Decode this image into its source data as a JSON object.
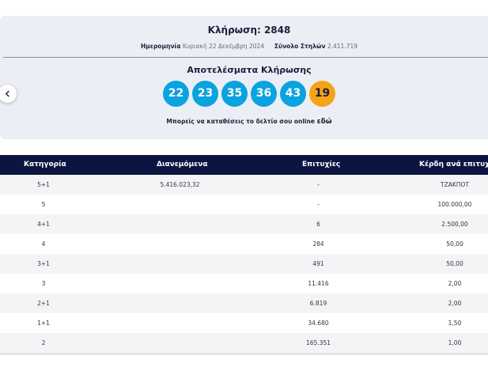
{
  "draw": {
    "title": "Κλήρωση: 2848",
    "date_label": "Ημερομηνία",
    "date_value": "Κυριακή 22 Δεκέμβρη 2024",
    "columns_label": "Σύνολο Στηλών",
    "columns_value": "2.411.719"
  },
  "results": {
    "title": "Αποτελέσματα Κλήρωσης",
    "numbers": [
      "22",
      "23",
      "35",
      "36",
      "43"
    ],
    "bonus": "19",
    "online_text": "Μπορείς να καταθέσεις το δελτίο σου online",
    "online_link": "εδώ"
  },
  "colors": {
    "ball": "#0aa3e0",
    "bonus_ball": "#f5a418",
    "header": "#0b1640"
  },
  "icons": {
    "prev": "chevron-left-icon"
  },
  "table": {
    "headers": [
      "Κατηγορία",
      "Διανεμόμενα",
      "Επιτυχίες",
      "Κέρδη ανά επιτυχία"
    ],
    "rows": [
      [
        "5+1",
        "5.416.023,32",
        "-",
        "ΤΖΑΚΠΟΤ"
      ],
      [
        "5",
        "",
        "-",
        "100.000,00"
      ],
      [
        "4+1",
        "",
        "6",
        "2.500,00"
      ],
      [
        "4",
        "",
        "284",
        "50,00"
      ],
      [
        "3+1",
        "",
        "491",
        "50,00"
      ],
      [
        "3",
        "",
        "11.416",
        "2,00"
      ],
      [
        "2+1",
        "",
        "6.819",
        "2,00"
      ],
      [
        "1+1",
        "",
        "34.680",
        "1,50"
      ],
      [
        "2",
        "",
        "165.351",
        "1,00"
      ]
    ]
  }
}
